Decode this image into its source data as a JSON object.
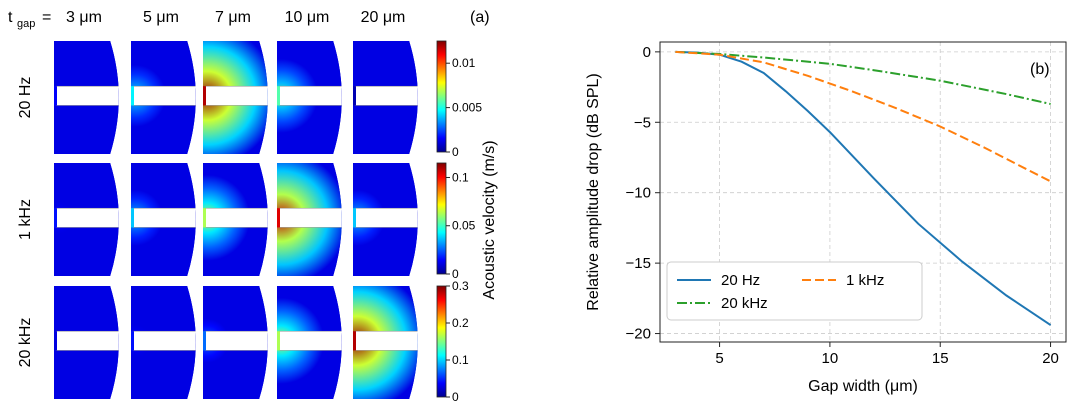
{
  "panel_a": {
    "tgap_label": "t",
    "tgap_sub": "gap",
    "equals": "=",
    "panel_label": "(a)",
    "columns": [
      "3 μm",
      "5 μm",
      "7 μm",
      "10 μm",
      "20 μm"
    ],
    "rows": [
      {
        "label": "20 Hz",
        "ticks": [
          "0.01",
          "0.005",
          "0"
        ],
        "tick_values": [
          0.01,
          0.005,
          0
        ],
        "vmax": 0.0125,
        "intensity": [
          0.08,
          0.35,
          1.0,
          0.45,
          0.0
        ]
      },
      {
        "label": "1 kHz",
        "ticks": [
          "0.1",
          "0.05",
          "0"
        ],
        "tick_values": [
          0.1,
          0.05,
          0
        ],
        "vmax": 0.115,
        "intensity": [
          0.1,
          0.3,
          0.55,
          0.95,
          0.3
        ]
      },
      {
        "label": "20 kHz",
        "ticks": [
          "0.3",
          "0.2",
          "0.1",
          "0"
        ],
        "tick_values": [
          0.3,
          0.2,
          0.1,
          0
        ],
        "vmax": 0.3,
        "intensity": [
          0.05,
          0.1,
          0.2,
          0.55,
          1.0
        ]
      }
    ],
    "colorbar_label": "Acoustic velocity (m/s)",
    "colormap": "jet"
  },
  "chart_data": {
    "type": "line",
    "panel_label": "(b)",
    "xlabel": "Gap width (μm)",
    "ylabel": "Relative amplitude drop (dB SPL)",
    "xlim": [
      2.3,
      20.7
    ],
    "ylim": [
      -20.6,
      0.7
    ],
    "xticks": [
      5,
      10,
      15,
      20
    ],
    "yticks": [
      0,
      -5,
      -10,
      -15,
      -20
    ],
    "grid": true,
    "legend_position": "lower-left",
    "series": [
      {
        "name": "20 Hz",
        "color": "#1f77b4",
        "dash": "solid",
        "x": [
          3,
          4,
          5,
          6,
          7,
          8,
          9,
          10,
          12,
          14,
          16,
          18,
          20
        ],
        "y": [
          0,
          -0.05,
          -0.2,
          -0.7,
          -1.5,
          -2.8,
          -4.2,
          -5.7,
          -9.0,
          -12.2,
          -14.9,
          -17.3,
          -19.4
        ]
      },
      {
        "name": "20 kHz",
        "color": "#2ca02c",
        "dash": "dashdot",
        "x": [
          3,
          5,
          7,
          10,
          12,
          15,
          18,
          20
        ],
        "y": [
          0,
          -0.15,
          -0.4,
          -0.85,
          -1.3,
          -2.05,
          -3.0,
          -3.7
        ]
      },
      {
        "name": "1 kHz",
        "color": "#ff7f0e",
        "dash": "dashed",
        "x": [
          3,
          5,
          7,
          9,
          11,
          13,
          15,
          17,
          19,
          20
        ],
        "y": [
          0,
          -0.2,
          -0.75,
          -1.7,
          -2.8,
          -4.0,
          -5.3,
          -6.8,
          -8.4,
          -9.2
        ]
      }
    ]
  }
}
